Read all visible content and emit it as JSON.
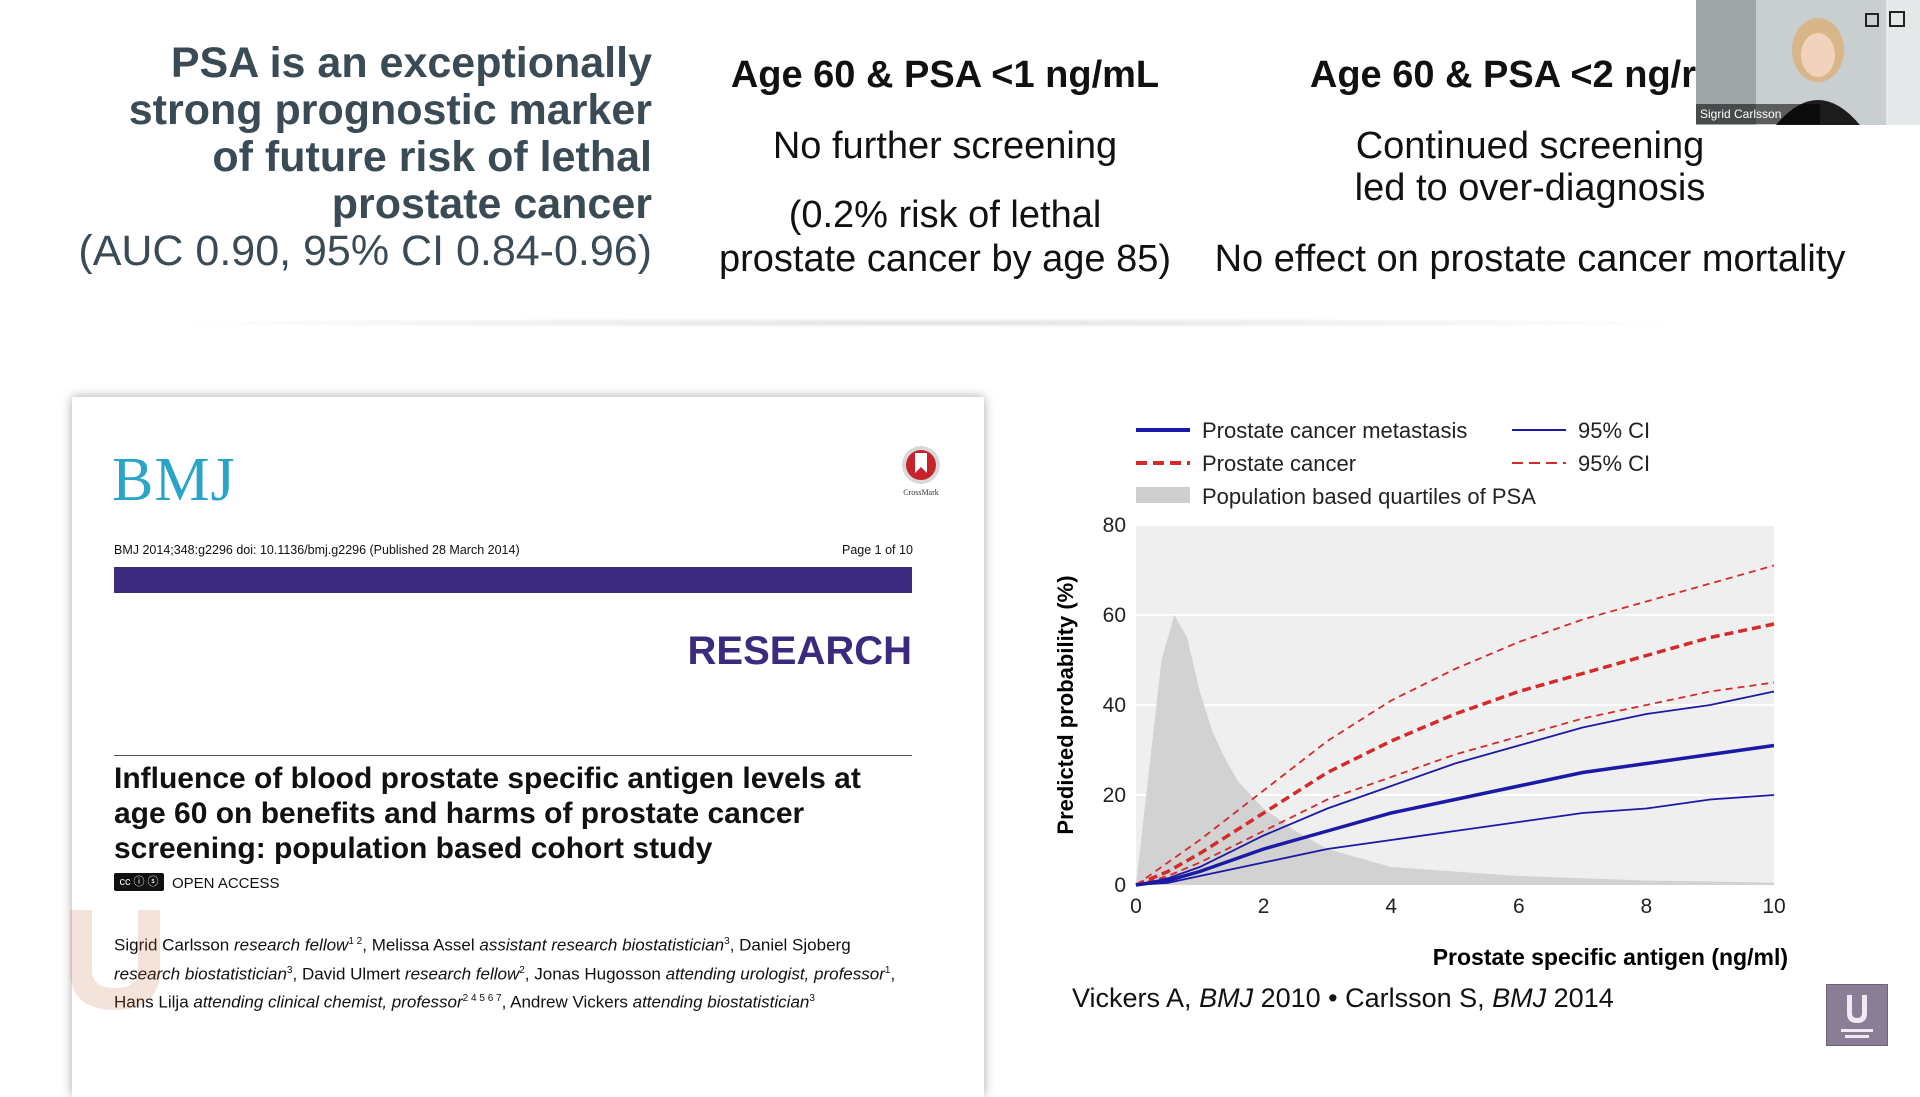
{
  "headline": {
    "lines": [
      "PSA is an exceptionally",
      "strong prognostic marker",
      "of future risk of lethal",
      "prostate cancer"
    ],
    "auc": "(AUC 0.90, 95% CI 0.84-0.96)"
  },
  "columns": [
    {
      "title": "Age 60 & PSA <1 ng/mL",
      "line1": "No further screening",
      "line2": "(0.2% risk of lethal",
      "line3": "prostate cancer by age 85)"
    },
    {
      "title": "Age 60 & PSA <2 ng/r",
      "line1": "Continued screening",
      "line2": "led to over-diagnosis",
      "line3": "No effect on prostate cancer mortality"
    }
  ],
  "paper": {
    "logo": "BMJ",
    "crossmark_label": "CrossMark",
    "citation": "BMJ 2014;348:g2296 doi: 10.1136/bmj.g2296 (Published 28 March 2014)",
    "page": "Page 1 of 10",
    "section": "RESEARCH",
    "title": "Influence of blood prostate specific antigen levels at age 60 on benefits and harms of prostate cancer screening: population based cohort study",
    "cc_badge": "cc ⓘ ⓢ",
    "open_access": "OPEN ACCESS",
    "authors": [
      {
        "name": "Sigrid Carlsson",
        "role": "research fellow",
        "sup": "1 2",
        "sep": ", "
      },
      {
        "name": "Melissa Assel",
        "role": "assistant research biostatistician",
        "sup": "3",
        "sep": ", "
      },
      {
        "name": "Daniel Sjoberg",
        "role": "research biostatistician",
        "sup": "3",
        "sep": ", "
      },
      {
        "name": "David Ulmert",
        "role": "research fellow",
        "sup": "2",
        "sep": ", "
      },
      {
        "name": "Jonas Hugosson",
        "role": "attending urologist, professor",
        "sup": "1",
        "sep": ", "
      },
      {
        "name": "Hans Lilja",
        "role": "attending clinical chemist, professor",
        "sup": "2 4 5 6 7",
        "sep": ", "
      },
      {
        "name": "Andrew Vickers",
        "role": "attending biostatistician",
        "sup": "3",
        "sep": ""
      }
    ]
  },
  "chart_data": {
    "type": "line",
    "xlabel": "Prostate specific antigen (ng/ml)",
    "ylabel": "Predicted probability (%)",
    "xlim": [
      0,
      10
    ],
    "ylim": [
      0,
      80
    ],
    "xticks": [
      0,
      2,
      4,
      6,
      8,
      10
    ],
    "yticks": [
      0,
      20,
      40,
      60,
      80
    ],
    "grid": true,
    "legend": [
      {
        "label": "Prostate cancer metastasis",
        "color": "#1a1aa6",
        "style": "solid",
        "weight": "thick"
      },
      {
        "label": "95% CI",
        "color": "#1a1aa6",
        "style": "solid",
        "weight": "thin"
      },
      {
        "label": "Prostate cancer",
        "color": "#d42a2a",
        "style": "dashed",
        "weight": "thick"
      },
      {
        "label": "95% CI",
        "color": "#d42a2a",
        "style": "dashed",
        "weight": "thin"
      },
      {
        "label": "Population based quartiles of PSA",
        "color": "#cfcfcf",
        "style": "area",
        "weight": "area"
      }
    ],
    "x": [
      0,
      0.5,
      1,
      2,
      3,
      4,
      5,
      6,
      7,
      8,
      9,
      10
    ],
    "series": [
      {
        "name": "Prostate cancer",
        "style": "dashed-thick",
        "color": "#d42a2a",
        "values": [
          0,
          3,
          7,
          16,
          25,
          32,
          38,
          43,
          47,
          51,
          55,
          58
        ]
      },
      {
        "name": "95% CI",
        "style": "dashed-thin",
        "color": "#d42a2a",
        "values": [
          0,
          5,
          10,
          21,
          32,
          41,
          48,
          54,
          59,
          63,
          67,
          71
        ]
      },
      {
        "name": "95% CI",
        "style": "dashed-thin",
        "color": "#d42a2a",
        "values": [
          0,
          2,
          5,
          12,
          19,
          24,
          29,
          33,
          37,
          40,
          43,
          45
        ]
      },
      {
        "name": "Prostate cancer metastasis",
        "style": "solid-thick",
        "color": "#1a1aa6",
        "values": [
          0,
          1,
          3,
          8,
          12,
          16,
          19,
          22,
          25,
          27,
          29,
          31
        ]
      },
      {
        "name": "95% CI",
        "style": "solid-thin",
        "color": "#1a1aa6",
        "values": [
          0,
          1.5,
          4,
          11,
          17,
          22,
          27,
          31,
          35,
          38,
          40,
          43
        ]
      },
      {
        "name": "95% CI",
        "style": "solid-thin",
        "color": "#1a1aa6",
        "values": [
          0,
          0.5,
          2,
          5,
          8,
          10,
          12,
          14,
          16,
          17,
          19,
          20
        ]
      }
    ],
    "psa_distribution": {
      "x": [
        0,
        0.2,
        0.4,
        0.6,
        0.8,
        1.0,
        1.2,
        1.4,
        1.6,
        2.0,
        2.5,
        3,
        4,
        5,
        6,
        7,
        8,
        9,
        10
      ],
      "values": [
        0,
        25,
        50,
        60,
        55,
        43,
        34,
        28,
        23,
        17,
        12,
        8,
        4,
        3,
        2,
        1.5,
        1,
        0.8,
        0.5
      ]
    }
  },
  "source": {
    "prefix": "Vickers A, ",
    "journal1": "BMJ",
    "mid": " 2010 • Carlsson S, ",
    "journal2": "BMJ",
    "suffix": " 2014"
  },
  "video": {
    "name": "Sigrid Carlsson"
  }
}
